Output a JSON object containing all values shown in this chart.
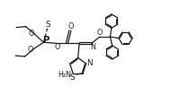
{
  "bg": "#ffffff",
  "lc": "#1a1a1a",
  "lw": 0.9,
  "fs": 5.8,
  "xlim": [
    0.0,
    10.0
  ],
  "ylim": [
    0.5,
    7.0
  ]
}
